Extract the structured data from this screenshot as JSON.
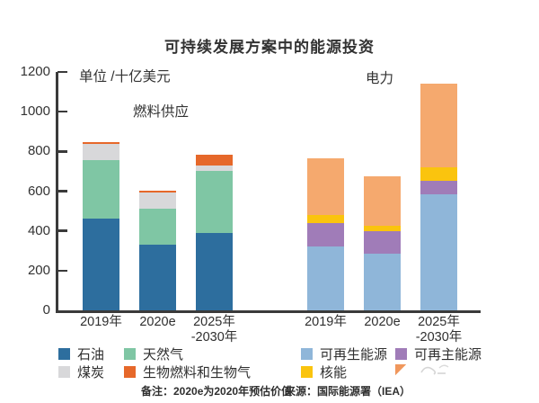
{
  "title": "可持续发展方案中的能源投资",
  "unit_label": "单位 /十亿美元",
  "notes": {
    "left": "备注：2020e为2020年预估价值",
    "right": "来源：国际能源署（IEA）"
  },
  "colors": {
    "oil": "#2d6e9e",
    "natural_gas": "#7fc6a4",
    "coal": "#d8d8da",
    "biofuels": "#e6682a",
    "renewables": "#8fb6d9",
    "purple_series": "#a07cb8",
    "nuclear": "#fac40e",
    "networks_orange": "#f5a96e",
    "axis": "#3a3a3a"
  },
  "chart_data": {
    "type": "bar",
    "stacked": true,
    "title": "可持续发展方案中的能源投资",
    "ylabel": "单位 /十亿美元",
    "ylim": [
      0,
      1200
    ],
    "yticks": [
      0,
      200,
      400,
      600,
      800,
      1000,
      1200
    ],
    "grid": false,
    "groups": [
      {
        "label": "燃料供应",
        "categories": [
          "2019年",
          "2020e",
          "2025年\n-2030年"
        ],
        "series": [
          {
            "name": "石油",
            "color": "#2d6e9e",
            "values": [
              460,
              330,
              390
            ]
          },
          {
            "name": "天然气",
            "color": "#7fc6a4",
            "values": [
              295,
              180,
              310
            ]
          },
          {
            "name": "煤炭",
            "color": "#d8d8da",
            "values": [
              85,
              85,
              30
            ]
          },
          {
            "name": "生物燃料和生物气",
            "color": "#e6682a",
            "values": [
              8,
              8,
              55
            ]
          }
        ]
      },
      {
        "label": "电力",
        "categories": [
          "2019年",
          "2020e",
          "2025年\n-2030年"
        ],
        "series": [
          {
            "name": "可再生能源",
            "color": "#8fb6d9",
            "values": [
              320,
              285,
              585
            ]
          },
          {
            "name": "可再主能源",
            "color": "#a07cb8",
            "values": [
              120,
              115,
              65
            ]
          },
          {
            "name": "核能",
            "color": "#fac40e",
            "values": [
              40,
              25,
              70
            ]
          },
          {
            "name": "",
            "color": "#f5a96e",
            "values": [
              285,
              250,
              420
            ],
            "legend_label_illegible": true
          }
        ]
      }
    ]
  },
  "legend": {
    "rows": [
      [
        {
          "label": "石油",
          "color": "#2d6e9e"
        },
        {
          "label": "天然气",
          "color": "#7fc6a4"
        },
        {
          "label": "可再生能源",
          "color": "#8fb6d9"
        },
        {
          "label": "可再主能源",
          "color": "#a07cb8"
        }
      ],
      [
        {
          "label": "煤炭",
          "color": "#d8d8da"
        },
        {
          "label": "生物燃料和生物气",
          "color": "#e6682a"
        },
        {
          "label": "核能",
          "color": "#fac40e"
        },
        {
          "label": "",
          "color": "#f0975c",
          "partial": true
        }
      ]
    ]
  }
}
